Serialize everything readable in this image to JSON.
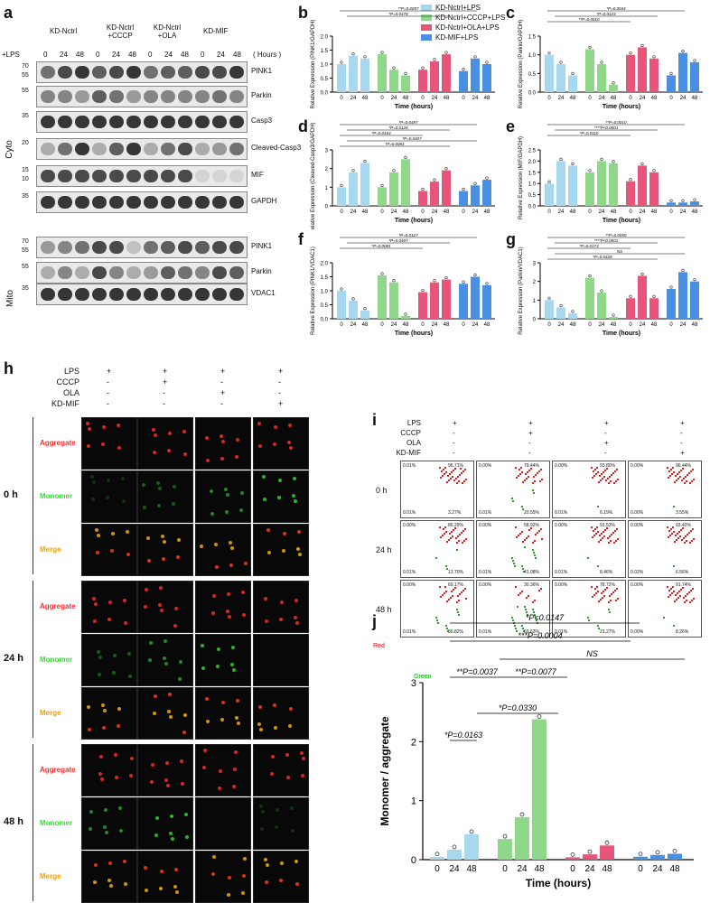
{
  "panels": {
    "a": "a",
    "b": "b",
    "c": "c",
    "d": "d",
    "e": "e",
    "f": "f",
    "g": "g",
    "h": "h",
    "i": "i",
    "j": "j"
  },
  "blot": {
    "groups": [
      "KD-Nctrl",
      "KD-Nctrl +CCCP",
      "KD-Nctrl +OLA",
      "KD-MIF"
    ],
    "lps": "+LPS",
    "hours_label": "( Hours )",
    "times": [
      "0",
      "24",
      "48"
    ],
    "cyto": "Cyto",
    "mito": "Mito",
    "rows": [
      {
        "name": "PINK1",
        "mw": [
          "70",
          "55"
        ]
      },
      {
        "name": "Parkin",
        "mw": [
          "55"
        ]
      },
      {
        "name": "Casp3",
        "mw": [
          "35"
        ]
      },
      {
        "name": "Cleaved-Casp3",
        "mw": [
          "20"
        ]
      },
      {
        "name": "MIF",
        "mw": [
          "15",
          "10"
        ]
      },
      {
        "name": "GAPDH",
        "mw": [
          "35"
        ]
      },
      {
        "name": "PINK1",
        "mw": [
          "70",
          "55"
        ]
      },
      {
        "name": "Parkin",
        "mw": [
          "55"
        ]
      },
      {
        "name": "VDAC1",
        "mw": [
          "35"
        ]
      }
    ]
  },
  "legend": [
    "KD-Nctrl+LPS",
    "KD-Nctrl+CCCP+LPS",
    "KD-Nctrl+OLA+LPS",
    "KD-MIF+LPS"
  ],
  "colors": {
    "lps": "#a8d8f0",
    "cccp": "#8fd88a",
    "ola": "#e8557a",
    "mif": "#4a90e2"
  },
  "small_charts": [
    {
      "id": "b",
      "ylabel": "Relative Expression (PINK1/GAPDH)",
      "yticks": [
        "0.0",
        "0.5",
        "1.0",
        "1.5",
        "2.0"
      ],
      "ymax": 2.0,
      "values": [
        [
          1.0,
          1.3,
          1.2
        ],
        [
          1.35,
          0.8,
          0.6
        ],
        [
          0.8,
          1.1,
          1.35
        ],
        [
          0.75,
          1.2,
          1.0
        ]
      ],
      "sig": [
        "**P=0.0097",
        "*P=0.0478"
      ]
    },
    {
      "id": "c",
      "ylabel": "Relative Expression (Parkin/GAPDH)",
      "yticks": [
        "0.0",
        "0.5",
        "1.0",
        "1.5"
      ],
      "ymax": 1.5,
      "values": [
        [
          1.0,
          0.75,
          0.45
        ],
        [
          1.15,
          0.75,
          0.2
        ],
        [
          1.0,
          1.2,
          0.9
        ],
        [
          0.45,
          1.05,
          0.8
        ]
      ],
      "sig": [
        "*P=0.0044",
        "*P=0.0123",
        "**P=0.0010"
      ]
    },
    {
      "id": "d",
      "ylabel": "Relative Expression (Cleaved-Casp3/GAPDH)",
      "yticks": [
        "0",
        "1",
        "2",
        "3"
      ],
      "ymax": 3,
      "values": [
        [
          1.0,
          1.8,
          2.3
        ],
        [
          1.0,
          1.8,
          2.5
        ],
        [
          0.8,
          1.3,
          1.9
        ],
        [
          0.8,
          1.1,
          1.4
        ]
      ],
      "sig": [
        "*P=0.0497",
        "*P=0.0126",
        "*P=0.0164",
        "*P=0.0407",
        "*P=0.0081"
      ]
    },
    {
      "id": "e",
      "ylabel": "Relative Expression (MIF/GAPDH)",
      "yticks": [
        "0.0",
        "0.5",
        "1.0",
        "1.5",
        "2.0",
        "2.5"
      ],
      "ymax": 2.5,
      "values": [
        [
          1.0,
          2.0,
          1.8
        ],
        [
          1.5,
          2.0,
          1.9
        ],
        [
          1.1,
          1.8,
          1.5
        ],
        [
          0.15,
          0.15,
          0.2
        ]
      ],
      "sig": [
        "**P=0.0010",
        "****P<0.0001",
        "*P=0.0110"
      ]
    },
    {
      "id": "f",
      "ylabel": "Relative Expression (PINK1/VDAC1)",
      "yticks": [
        "0.0",
        "0.5",
        "1.0",
        "1.5",
        "2.0"
      ],
      "ymax": 2.0,
      "values": [
        [
          1.0,
          0.65,
          0.3
        ],
        [
          1.55,
          1.3,
          0.1
        ],
        [
          0.95,
          1.3,
          1.4
        ],
        [
          1.25,
          1.5,
          1.2
        ]
      ],
      "sig": [
        "*P=0.0127",
        "*P=0.0407",
        "*P=0.0081"
      ]
    },
    {
      "id": "g",
      "ylabel": "Relative Expression (Parkin/VDAC1)",
      "yticks": [
        "0",
        "1",
        "2",
        "3"
      ],
      "ymax": 3,
      "values": [
        [
          1.0,
          0.6,
          0.3
        ],
        [
          2.2,
          1.4,
          0.1
        ],
        [
          1.1,
          2.3,
          1.1
        ],
        [
          1.6,
          2.5,
          2.0
        ]
      ],
      "sig": [
        "**P=0.0050",
        "****P<0.0001",
        "*P=0.0173",
        "NS",
        "*P=0.0428"
      ]
    }
  ],
  "time_label": "Time (hours)",
  "h": {
    "treat_rows": [
      "LPS",
      "CCCP",
      "OLA",
      "KD-MIF"
    ],
    "treat_vals": [
      [
        "+",
        "+",
        "+",
        "+"
      ],
      [
        "-",
        "+",
        "-",
        "-"
      ],
      [
        "-",
        "-",
        "+",
        "-"
      ],
      [
        "-",
        "-",
        "-",
        "+"
      ]
    ],
    "times": [
      "0 h",
      "24 h",
      "48 h"
    ],
    "channels": [
      "Aggregate",
      "Monomer",
      "Merge"
    ]
  },
  "i": {
    "times": [
      "0 h",
      "24 h",
      "48 h"
    ],
    "quads": [
      [
        [
          "0.01%",
          "96.71%",
          "0.01%",
          "3.27%"
        ],
        [
          "0.00%",
          "79.44%",
          "0.01%",
          "20.55%"
        ],
        [
          "0.00%",
          "93.80%",
          "0.01%",
          "6.19%"
        ],
        [
          "0.00%",
          "96.44%",
          "0.00%",
          "3.55%"
        ]
      ],
      [
        [
          "0.00%",
          "86.29%",
          "0.01%",
          "13.70%"
        ],
        [
          "0.00%",
          "58.92%",
          "0.01%",
          "41.08%"
        ],
        [
          "0.00%",
          "91.53%",
          "0.01%",
          "8.46%"
        ],
        [
          "0.00%",
          "93.42%",
          "0.02%",
          "6.56%"
        ]
      ],
      [
        [
          "0.00%",
          "69.17%",
          "0.01%",
          "30.82%"
        ],
        [
          "0.00%",
          "30.36%",
          "0.01%",
          "69.63%"
        ],
        [
          "0.00%",
          "78.72%",
          "0.01%",
          "21.27%"
        ],
        [
          "0.00%",
          "91.74%",
          "0.00%",
          "8.26%"
        ]
      ]
    ],
    "axis_red": "Red",
    "axis_green": "Green"
  },
  "chart_data": {
    "type": "bar",
    "categories": [
      "0",
      "24",
      "48"
    ],
    "series": [
      {
        "name": "KD-Nctrl+LPS",
        "values": [
          0.05,
          0.17,
          0.43
        ]
      },
      {
        "name": "KD-Nctrl+CCCP+LPS",
        "values": [
          0.35,
          0.72,
          2.38
        ]
      },
      {
        "name": "KD-Nctrl+OLA+LPS",
        "values": [
          0.04,
          0.09,
          0.24
        ]
      },
      {
        "name": "KD-MIF+LPS",
        "values": [
          0.05,
          0.08,
          0.1
        ]
      }
    ],
    "xlabel": "Time (hours)",
    "ylabel": "Monomer / aggregate",
    "ylim": [
      0,
      3
    ],
    "yticks": [
      "0",
      "1",
      "2",
      "3"
    ],
    "sig": [
      "*P=0.0147",
      "***P=0.0004",
      "NS",
      "**P=0.0037",
      "**P=0.0077",
      "*P=0.0330",
      "*P=0.0163"
    ]
  }
}
